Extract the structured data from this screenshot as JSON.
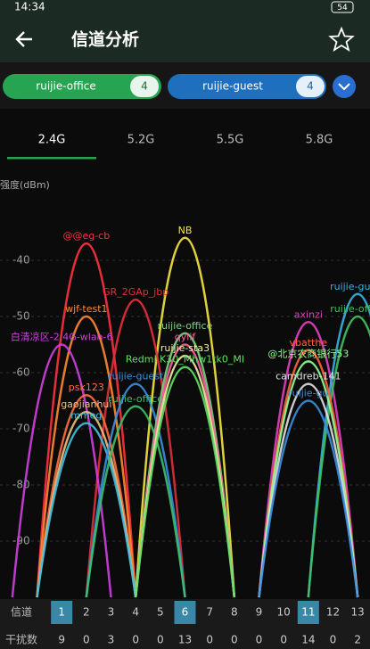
{
  "status_bar": {
    "time": "14:34",
    "battery": "54"
  },
  "app_bar": {
    "title": "信道分析"
  },
  "chips": [
    {
      "label": "ruijie-office",
      "count": "4"
    },
    {
      "label": "ruijie-guest",
      "count": "4"
    }
  ],
  "tabs": {
    "items": [
      "2.4G",
      "5.2G",
      "5.5G",
      "5.8G"
    ],
    "selected": 0
  },
  "chart_data": {
    "type": "channel-curves",
    "y_label": "强度(dBm)",
    "ylim": [
      -100,
      -30
    ],
    "yticks": [
      -40,
      -50,
      -60,
      -70,
      -80,
      -90
    ],
    "xlim": [
      -1.5,
      13.5
    ],
    "grid": true,
    "channel_label": "信道",
    "channels": [
      1,
      2,
      3,
      4,
      5,
      6,
      7,
      8,
      9,
      10,
      11,
      12,
      13
    ],
    "highlight": [
      1,
      6,
      11
    ],
    "interference_label": "干扰数",
    "interference": [
      9,
      0,
      3,
      0,
      0,
      13,
      0,
      0,
      0,
      0,
      14,
      0,
      2
    ],
    "series": [
      {
        "name": "@@eg-cb",
        "channel": 2,
        "peak": -37,
        "color": "#ff3040"
      },
      {
        "name": "NB",
        "channel": 6,
        "peak": -36,
        "color": "#f5e642"
      },
      {
        "name": "GR_2GAp_jbp",
        "channel": 4,
        "peak": -47,
        "color": "#e0303a"
      },
      {
        "name": "wjf-test1",
        "channel": 2,
        "peak": -50,
        "color": "#ff8a30"
      },
      {
        "name": "白清凉区-2.4G-wlan-6",
        "channel": 1,
        "peak": -55,
        "color": "#d040e0"
      },
      {
        "name": "psk123",
        "channel": 2,
        "peak": -64,
        "color": "#ff7040"
      },
      {
        "name": "gaojianhui",
        "channel": 2,
        "peak": -67,
        "color": "#f0c080"
      },
      {
        "name": "mmeg",
        "channel": 2,
        "peak": -69,
        "color": "#40c0e0"
      },
      {
        "name": "ruijie-guest",
        "channel": 4,
        "peak": -62,
        "color": "#3a8fe0"
      },
      {
        "name": "ruijie-office",
        "channel": 4,
        "peak": -66,
        "color": "#3ac070"
      },
      {
        "name": "ruijie-office",
        "channel": 6,
        "peak": -53,
        "color": "#80d080"
      },
      {
        "name": "qylif",
        "channel": 6,
        "peak": -55,
        "color": "#ff60a0"
      },
      {
        "name": "ruijie-sta3",
        "channel": 6,
        "peak": -57,
        "color": "#f0f0a0"
      },
      {
        "name": "Redmi K30_Mhw1tk0_MI",
        "channel": 6,
        "peak": -59,
        "color": "#60e060"
      },
      {
        "name": "axinzi",
        "channel": 11,
        "peak": -51,
        "color": "#e040c0"
      },
      {
        "name": "ruijie-guest",
        "channel": 13,
        "peak": -46,
        "color": "#3ab0e0"
      },
      {
        "name": "ruijie-office",
        "channel": 13,
        "peak": -50,
        "color": "#40c060"
      },
      {
        "name": "vbatthe",
        "channel": 11,
        "peak": -56,
        "color": "#ff6040"
      },
      {
        "name": "@北京农商银行53",
        "channel": 11,
        "peak": -58,
        "color": "#90ff90"
      },
      {
        "name": "camdreb-141",
        "channel": 11,
        "peak": -62,
        "color": "#e0e0e0"
      },
      {
        "name": "ruijie-gu",
        "channel": 11,
        "peak": -65,
        "color": "#3a8fe0"
      }
    ]
  }
}
